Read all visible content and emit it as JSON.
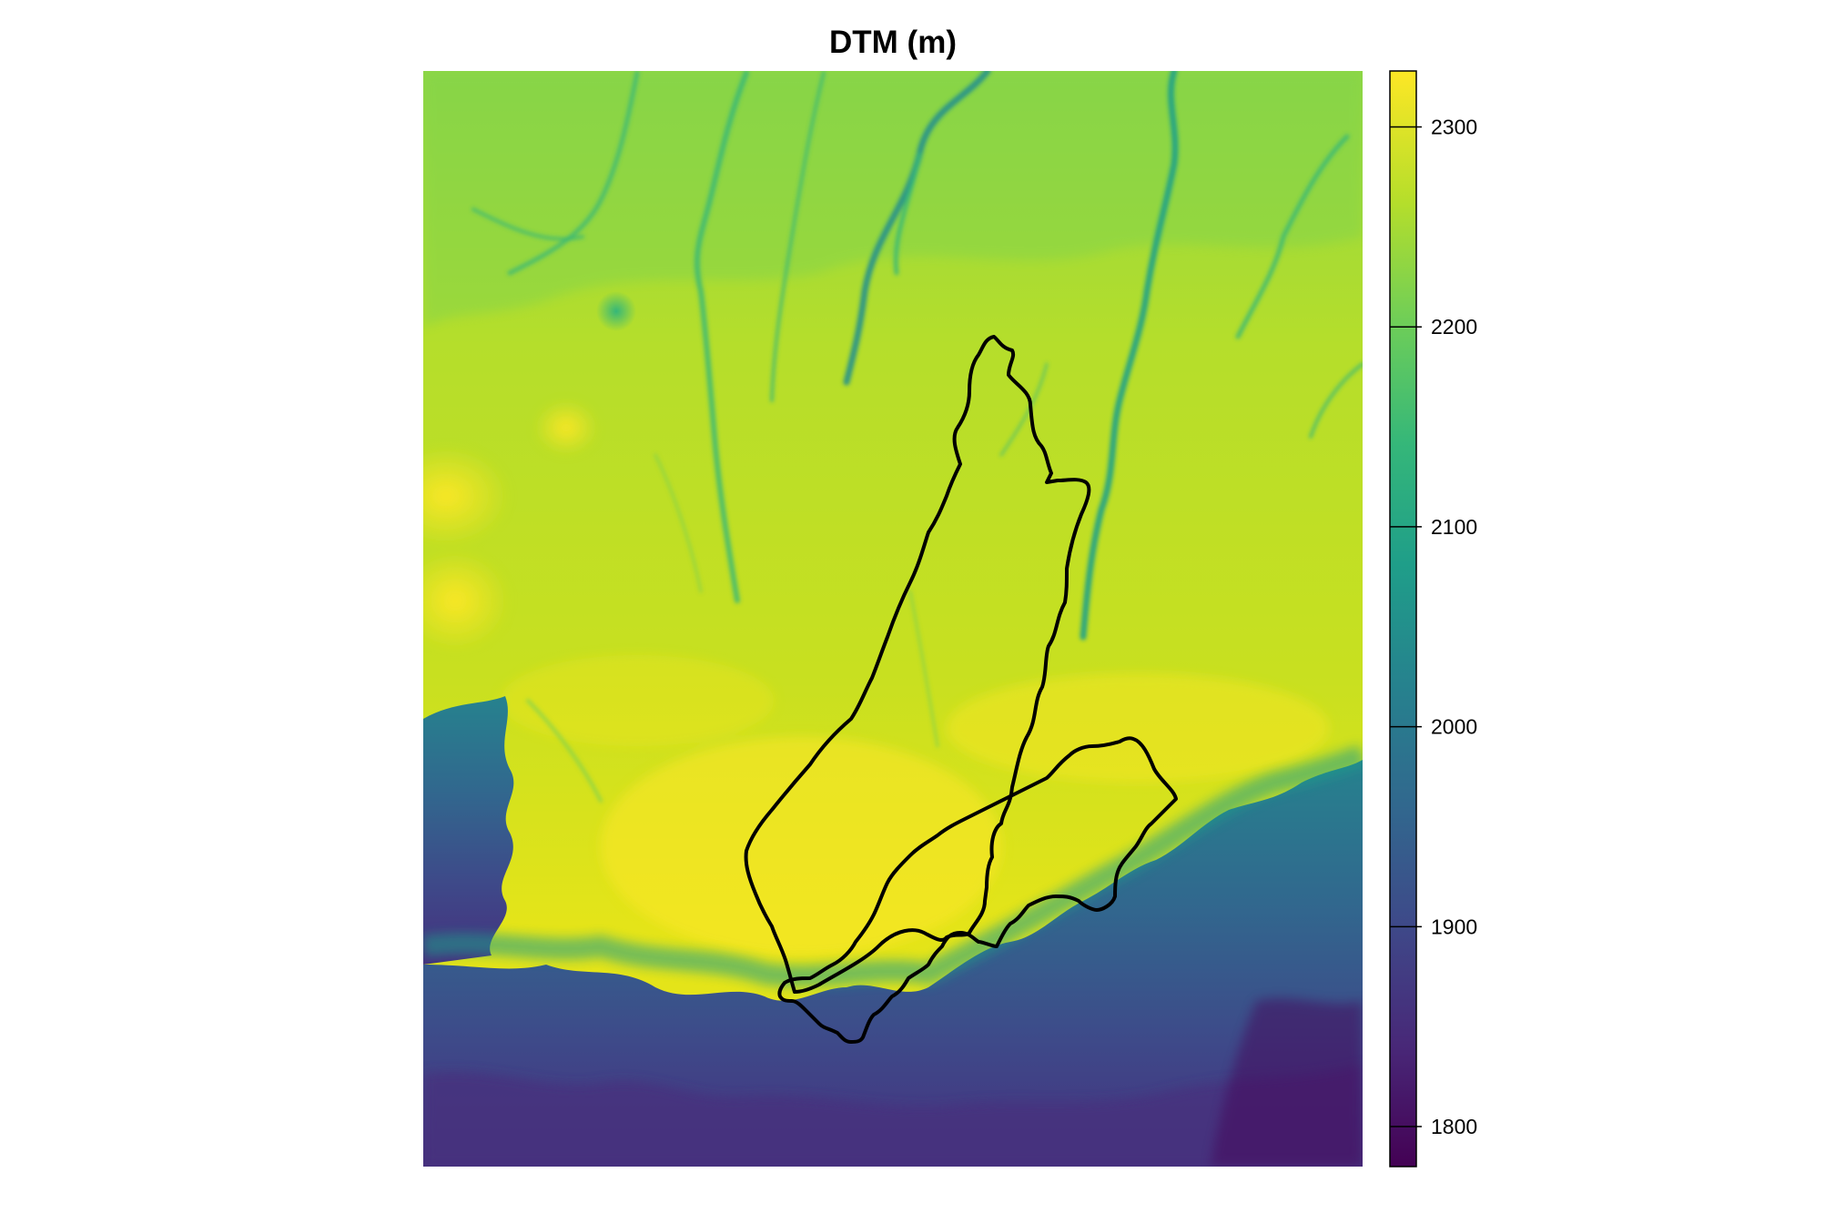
{
  "map": {
    "title": "DTM (m)",
    "elevation_range": [
      1780,
      2328
    ],
    "legend": {
      "type": "continuous-colorbar",
      "placement": "right",
      "ticks": [
        {
          "value": 2300,
          "label": "2300"
        },
        {
          "value": 2200,
          "label": "2200"
        },
        {
          "value": 2100,
          "label": "2100"
        },
        {
          "value": 2000,
          "label": "2000"
        },
        {
          "value": 1900,
          "label": "1900"
        },
        {
          "value": 1800,
          "label": "1800"
        }
      ]
    },
    "palette": {
      "name": "viridis",
      "stops": [
        "#440154",
        "#482878",
        "#3e4989",
        "#31688e",
        "#26828e",
        "#1f9e89",
        "#35b779",
        "#6ece58",
        "#b5de2b",
        "#fde725"
      ]
    },
    "outline_color": "#000000",
    "regions": [
      "northern-polygon",
      "southern-polygon"
    ]
  }
}
